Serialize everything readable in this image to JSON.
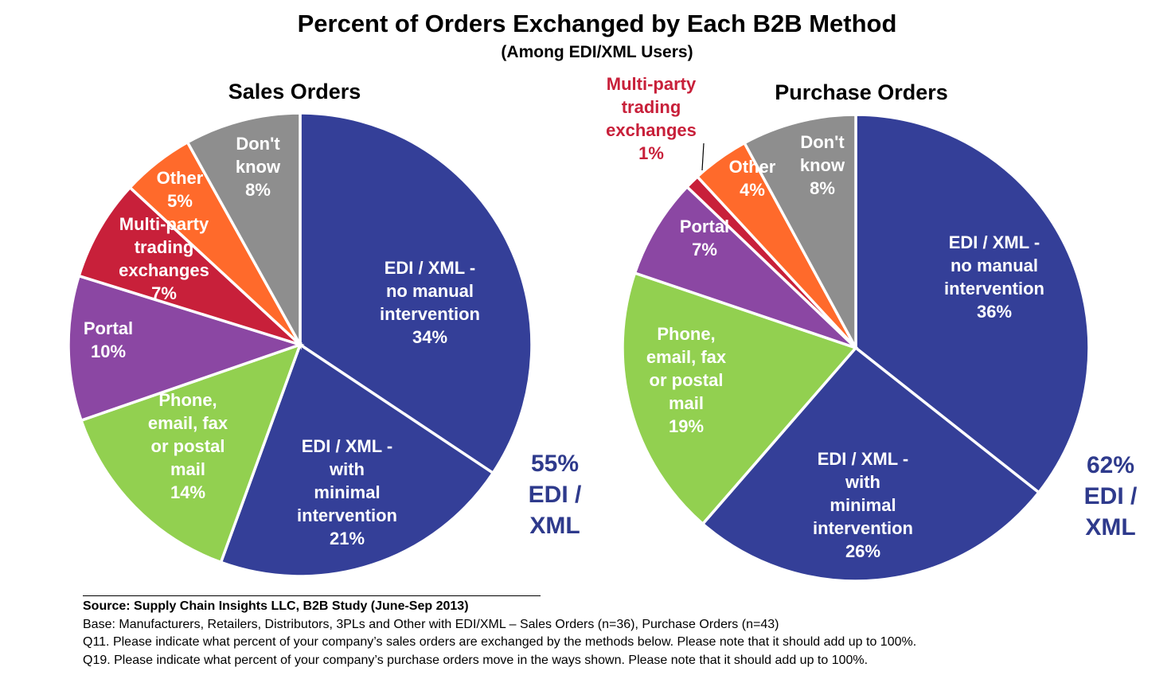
{
  "title": "Percent of Orders Exchanged by Each B2B Method",
  "subtitle": "(Among  EDI/XML Users)",
  "footer": {
    "source": "Source:  Supply Chain Insights LLC, B2B Study (June-Sep 2013)",
    "base": "Base:  Manufacturers,  Retailers, Distributors, 3PLs and Other with EDI/XML –  Sales Orders (n=36), Purchase Orders (n=43)",
    "q11": "Q11. Please indicate what percent of your company’s sales orders are exchanged by the methods below.  Please note that it should add up to 100%.",
    "q19": "Q19. Please indicate what percent of your company’s purchase orders move in the ways shown. Please note that it should add up to 100%."
  },
  "colors": {
    "edi_no_manual": "#343f98",
    "edi_minimal": "#343f98",
    "phone": "#92d050",
    "portal": "#8b47a3",
    "multiparty": "#c8203a",
    "other": "#ff6a2b",
    "dont_know": "#8e8e8e",
    "edi_total_text": "#2e3a8c",
    "multiparty_text": "#c8203a"
  },
  "chart_data": [
    {
      "type": "pie",
      "title": "Sales Orders",
      "slices": [
        {
          "key": "edi_no_manual",
          "lines": [
            "EDI / XML -",
            "no manual",
            "intervention",
            "34%"
          ],
          "value": 34
        },
        {
          "key": "edi_minimal",
          "lines": [
            "EDI / XML -",
            "with",
            "minimal",
            "intervention",
            "21%"
          ],
          "value": 21
        },
        {
          "key": "phone",
          "lines": [
            "Phone,",
            "email, fax",
            "or postal",
            "mail",
            "14%"
          ],
          "value": 14
        },
        {
          "key": "portal",
          "lines": [
            "Portal",
            "10%"
          ],
          "value": 10
        },
        {
          "key": "multiparty",
          "lines": [
            "Multi-party",
            "trading",
            "exchanges",
            "7%"
          ],
          "value": 7
        },
        {
          "key": "other",
          "lines": [
            "Other",
            "5%"
          ],
          "value": 5
        },
        {
          "key": "dont_know",
          "lines": [
            "Don't",
            "know",
            "8%"
          ],
          "value": 8
        }
      ],
      "total_note": [
        "55%",
        "EDI /",
        "XML"
      ]
    },
    {
      "type": "pie",
      "title": "Purchase Orders",
      "slices": [
        {
          "key": "edi_no_manual",
          "lines": [
            "EDI / XML -",
            "no manual",
            "intervention",
            "36%"
          ],
          "value": 36
        },
        {
          "key": "edi_minimal",
          "lines": [
            "EDI / XML -",
            "with",
            "minimal",
            "intervention",
            "26%"
          ],
          "value": 26
        },
        {
          "key": "phone",
          "lines": [
            "Phone,",
            "email, fax",
            "or postal",
            "mail",
            "19%"
          ],
          "value": 19
        },
        {
          "key": "portal",
          "lines": [
            "Portal",
            "7%"
          ],
          "value": 7
        },
        {
          "key": "multiparty",
          "lines": [
            "Multi-party",
            "trading",
            "exchanges",
            "1%"
          ],
          "value": 1
        },
        {
          "key": "other",
          "lines": [
            "Other",
            "4%"
          ],
          "value": 4
        },
        {
          "key": "dont_know",
          "lines": [
            "Don't",
            "know",
            "8%"
          ],
          "value": 8
        }
      ],
      "total_note": [
        "62%",
        "EDI /",
        "XML"
      ]
    }
  ]
}
